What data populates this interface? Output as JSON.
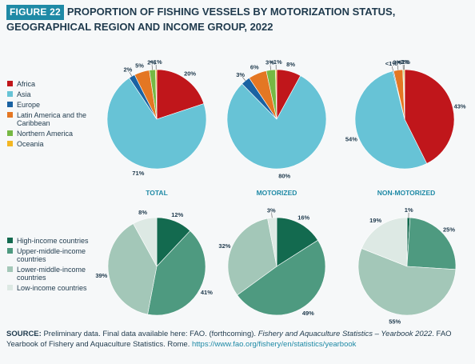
{
  "header": {
    "badge": "FIGURE 22",
    "title": "PROPORTION OF FISHING VESSELS BY MOTORIZATION STATUS, GEOGRAPHICAL REGION AND INCOME GROUP, 2022"
  },
  "colors": {
    "Africa": "#c0161b",
    "Asia": "#67c3d6",
    "Europe": "#1a62a2",
    "Latin America and the Caribbean": "#e47723",
    "Northern America": "#76b844",
    "Oceania": "#f3b723",
    "High-income countries": "#136a4f",
    "Upper-middle-income countries": "#4e9a80",
    "Lower-middle-income countries": "#a3c7b8",
    "Low-income countries": "#dde9e4"
  },
  "chart_data": [
    {
      "type": "pie",
      "group": "region",
      "panel": "TOTAL",
      "slices": [
        {
          "label": "Africa",
          "value": 20,
          "text": "20%"
        },
        {
          "label": "Asia",
          "value": 71,
          "text": "71%"
        },
        {
          "label": "Europe",
          "value": 2,
          "text": "2%"
        },
        {
          "label": "Latin America and the Caribbean",
          "value": 5,
          "text": "5%"
        },
        {
          "label": "Northern America",
          "value": 2,
          "text": "2%"
        },
        {
          "label": "Oceania",
          "value": 0.4,
          "text": "<1%"
        }
      ]
    },
    {
      "type": "pie",
      "group": "region",
      "panel": "MOTORIZED",
      "slices": [
        {
          "label": "Africa",
          "value": 8,
          "text": "8%"
        },
        {
          "label": "Asia",
          "value": 80,
          "text": "80%"
        },
        {
          "label": "Europe",
          "value": 3,
          "text": "3%"
        },
        {
          "label": "Latin America and the Caribbean",
          "value": 6,
          "text": "6%"
        },
        {
          "label": "Northern America",
          "value": 3,
          "text": "3%"
        },
        {
          "label": "Oceania",
          "value": 0.4,
          "text": "<1%"
        }
      ]
    },
    {
      "type": "pie",
      "group": "region",
      "panel": "NON-MOTORIZED",
      "slices": [
        {
          "label": "Africa",
          "value": 43,
          "text": "43%"
        },
        {
          "label": "Asia",
          "value": 54,
          "text": "54%"
        },
        {
          "label": "Europe",
          "value": 0.3,
          "text": "<1%"
        },
        {
          "label": "Latin America and the Caribbean",
          "value": 3,
          "text": "3%"
        },
        {
          "label": "Northern America",
          "value": 0.3,
          "text": "<1%"
        },
        {
          "label": "Oceania",
          "value": 0.3,
          "text": "<1%"
        }
      ]
    },
    {
      "type": "pie",
      "group": "income",
      "panel": "TOTAL",
      "slices": [
        {
          "label": "High-income countries",
          "value": 12,
          "text": "12%"
        },
        {
          "label": "Upper-middle-income countries",
          "value": 41,
          "text": "41%"
        },
        {
          "label": "Lower-middle-income countries",
          "value": 39,
          "text": "39%"
        },
        {
          "label": "Low-income countries",
          "value": 8,
          "text": "8%"
        }
      ]
    },
    {
      "type": "pie",
      "group": "income",
      "panel": "MOTORIZED",
      "slices": [
        {
          "label": "High-income countries",
          "value": 16,
          "text": "16%"
        },
        {
          "label": "Upper-middle-income countries",
          "value": 49,
          "text": "49%"
        },
        {
          "label": "Lower-middle-income countries",
          "value": 32,
          "text": "32%"
        },
        {
          "label": "Low-income countries",
          "value": 3,
          "text": "3%"
        }
      ]
    },
    {
      "type": "pie",
      "group": "income",
      "panel": "NON-MOTORIZED",
      "slices": [
        {
          "label": "High-income countries",
          "value": 1,
          "text": "1%"
        },
        {
          "label": "Upper-middle-income countries",
          "value": 25,
          "text": "25%"
        },
        {
          "label": "Lower-middle-income countries",
          "value": 55,
          "text": "55%"
        },
        {
          "label": "Low-income countries",
          "value": 19,
          "text": "19%"
        }
      ]
    }
  ],
  "panel_titles": [
    "TOTAL",
    "MOTORIZED",
    "NON-MOTORIZED"
  ],
  "legend_region": [
    "Africa",
    "Asia",
    "Europe",
    "Latin America and the Caribbean",
    "Northern America",
    "Oceania"
  ],
  "legend_income": [
    "High-income countries",
    "Upper-middle-income countries",
    "Lower-middle-income countries",
    "Low-income countries"
  ],
  "footer": {
    "source_label": "SOURCE:",
    "text1": " Preliminary data. Final data available here: FAO. (forthcoming). ",
    "italic": "Fishery and Aquaculture Statistics – Yearbook 2022",
    "text2": ". FAO Yearbook of Fishery and Aquaculture Statistics. Rome. ",
    "link": "https://www.fao.org/fishery/en/statistics/yearbook"
  }
}
